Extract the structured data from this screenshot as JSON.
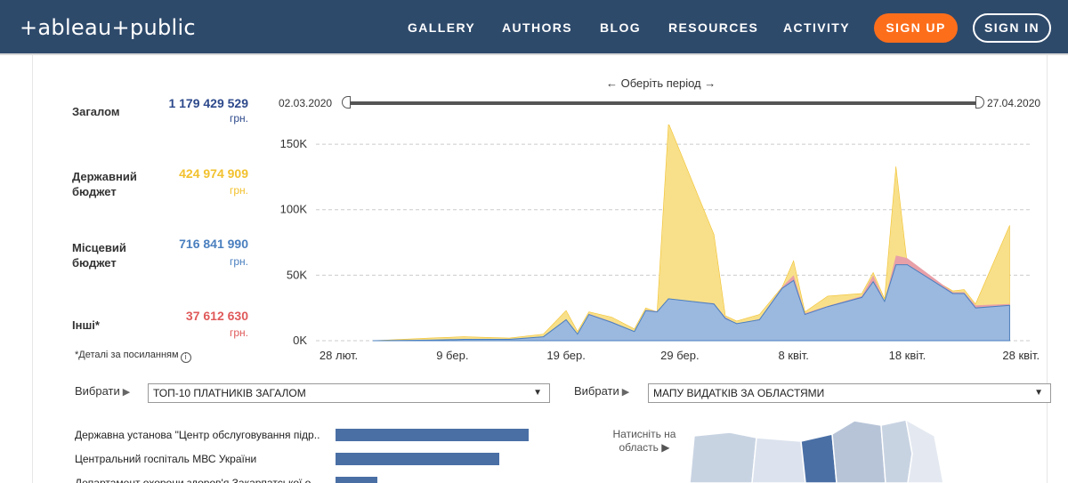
{
  "header": {
    "logo": "+ableau+public",
    "nav": [
      "GALLERY",
      "AUTHORS",
      "BLOG",
      "RESOURCES",
      "ACTIVITY"
    ],
    "signup": "SIGN UP",
    "signin": "SIGN IN"
  },
  "stats": {
    "total": {
      "label": "Загалом",
      "value": "1 179 429 529",
      "unit": "грн.",
      "color": "#2e4a8c"
    },
    "state": {
      "label": "Державний бюджет",
      "value": "424 974 909",
      "unit": "грн.",
      "color": "#f2c12e"
    },
    "local": {
      "label": "Місцевий бюджет",
      "value": "716 841 990",
      "unit": "грн.",
      "color": "#4a7fbf"
    },
    "other": {
      "label": "Інші*",
      "value": "37 612 630",
      "unit": "грн.",
      "color": "#e05a5a"
    }
  },
  "note": "*Деталі за посиланням",
  "period": {
    "label": "← Оберіть період →",
    "start": "02.03.2020",
    "end": "27.04.2020"
  },
  "chart_data": {
    "type": "area",
    "x_ticks": [
      "28 лют.",
      "9 бер.",
      "19 бер.",
      "29 бер.",
      "8 квіт.",
      "18 квіт.",
      "28 квіт."
    ],
    "y_ticks": [
      "0K",
      "50K",
      "100K",
      "150K"
    ],
    "ylim": [
      0,
      165000
    ],
    "x": [
      "2020-03-02",
      "2020-03-07",
      "2020-03-10",
      "2020-03-14",
      "2020-03-17",
      "2020-03-19",
      "2020-03-20",
      "2020-03-21",
      "2020-03-23",
      "2020-03-25",
      "2020-03-26",
      "2020-03-27",
      "2020-03-28",
      "2020-04-01",
      "2020-04-02",
      "2020-04-03",
      "2020-04-05",
      "2020-04-07",
      "2020-04-08",
      "2020-04-09",
      "2020-04-11",
      "2020-04-14",
      "2020-04-15",
      "2020-04-16",
      "2020-04-17",
      "2020-04-18",
      "2020-04-22",
      "2020-04-23",
      "2020-04-24",
      "2020-04-27"
    ],
    "series": [
      {
        "color": "#4a7fbf",
        "values": [
          0,
          400,
          1000,
          1000,
          3000,
          16000,
          5000,
          20000,
          14000,
          7000,
          23000,
          22000,
          32000,
          28000,
          17000,
          13000,
          16000,
          40000,
          46000,
          20000,
          26000,
          33000,
          45000,
          30000,
          58000,
          58000,
          36000,
          36000,
          25000,
          27000
        ]
      },
      {
        "color": "#e8a0a8",
        "values": [
          0,
          0,
          0,
          0,
          0,
          500,
          0,
          500,
          500,
          0,
          500,
          500,
          0,
          500,
          1000,
          0,
          500,
          1000,
          4000,
          1000,
          500,
          1000,
          5000,
          0,
          7000,
          5000,
          1000,
          1000,
          2000,
          1000
        ]
      },
      {
        "color": "#f2c12e",
        "values": [
          0,
          400,
          1500,
          1000,
          2000,
          6000,
          2000,
          1500,
          3000,
          2000,
          2000,
          1000,
          0,
          0,
          0,
          0,
          2000,
          1000,
          0,
          0,
          0,
          0,
          0,
          0,
          0,
          0,
          0,
          0,
          0,
          0
        ]
      }
    ],
    "fill_total_colour": "#f8e08a",
    "total": [
      0,
      2000,
      3000,
      2000,
      5000,
      23000,
      7000,
      22000,
      18000,
      9000,
      25000,
      22000,
      166000,
      81000,
      19000,
      15000,
      20000,
      41000,
      61000,
      22000,
      34000,
      36000,
      52000,
      32000,
      133000,
      58000,
      38000,
      39000,
      28000,
      88000
    ]
  },
  "selector1": {
    "label": "Вибрати",
    "value": "ТОП-10 ПЛАТНИКІВ ЗАГАЛОМ"
  },
  "selector2": {
    "label": "Вибрати",
    "value": "МАПУ ВИДАТКІВ ЗА ОБЛАСТЯМИ"
  },
  "payers": [
    {
      "name": "Державна установа \"Центр обслуговування підр..",
      "value": 217
    },
    {
      "name": "Центральний госпіталь МВС України",
      "value": 184
    },
    {
      "name": "Департамент охорони здоров'я Закарпатської о..",
      "value": 47
    }
  ],
  "map_hint": "Натисніть на область ▶"
}
